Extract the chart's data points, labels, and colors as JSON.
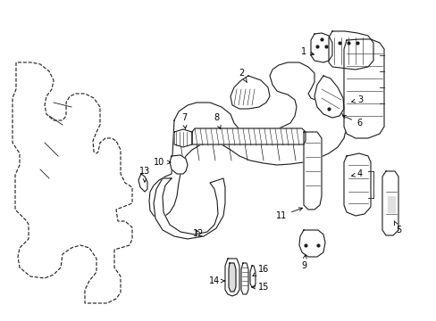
{
  "background_color": "#ffffff",
  "fig_width": 4.89,
  "fig_height": 3.6,
  "dpi": 100,
  "line_color": "#1a1a1a",
  "label_fontsize": 7,
  "line_width": 0.8
}
